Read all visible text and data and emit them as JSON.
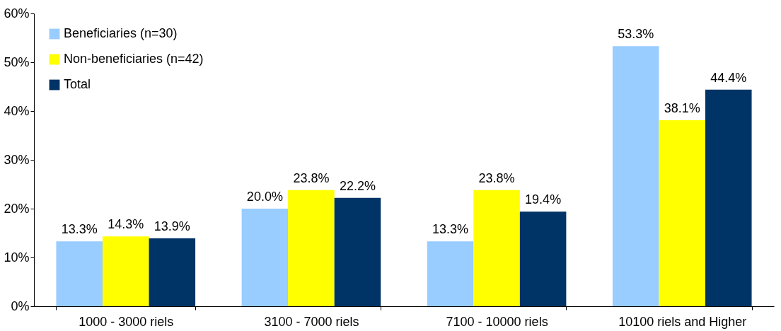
{
  "chart_data": {
    "type": "bar",
    "categories": [
      "1000 - 3000 riels",
      "3100 - 7000 riels",
      "7100 - 10000 riels",
      "10100 riels and Higher"
    ],
    "series": [
      {
        "name": "Beneficiaries (n=30)",
        "color": "#99ccff",
        "values": [
          13.3,
          20.0,
          13.3,
          53.3
        ],
        "value_labels": [
          "13.3%",
          "20.0%",
          "13.3%",
          "53.3%"
        ]
      },
      {
        "name": "Non-beneficiaries (n=42)",
        "color": "#ffff00",
        "values": [
          14.3,
          23.8,
          23.8,
          38.1
        ],
        "value_labels": [
          "14.3%",
          "23.8%",
          "23.8%",
          "38.1%"
        ]
      },
      {
        "name": "Total",
        "color": "#003366",
        "values": [
          13.9,
          22.2,
          19.4,
          44.4
        ],
        "value_labels": [
          "13.9%",
          "22.2%",
          "19.4%",
          "44.4%"
        ]
      }
    ],
    "ylim": [
      0,
      60
    ],
    "yticks": [
      {
        "value": 0,
        "label": "0%"
      },
      {
        "value": 10,
        "label": "10%"
      },
      {
        "value": 20,
        "label": "20%"
      },
      {
        "value": 30,
        "label": "30%"
      },
      {
        "value": 40,
        "label": "40%"
      },
      {
        "value": 50,
        "label": "50%"
      },
      {
        "value": 60,
        "label": "60%"
      }
    ],
    "grid": false,
    "legend": "top left"
  }
}
